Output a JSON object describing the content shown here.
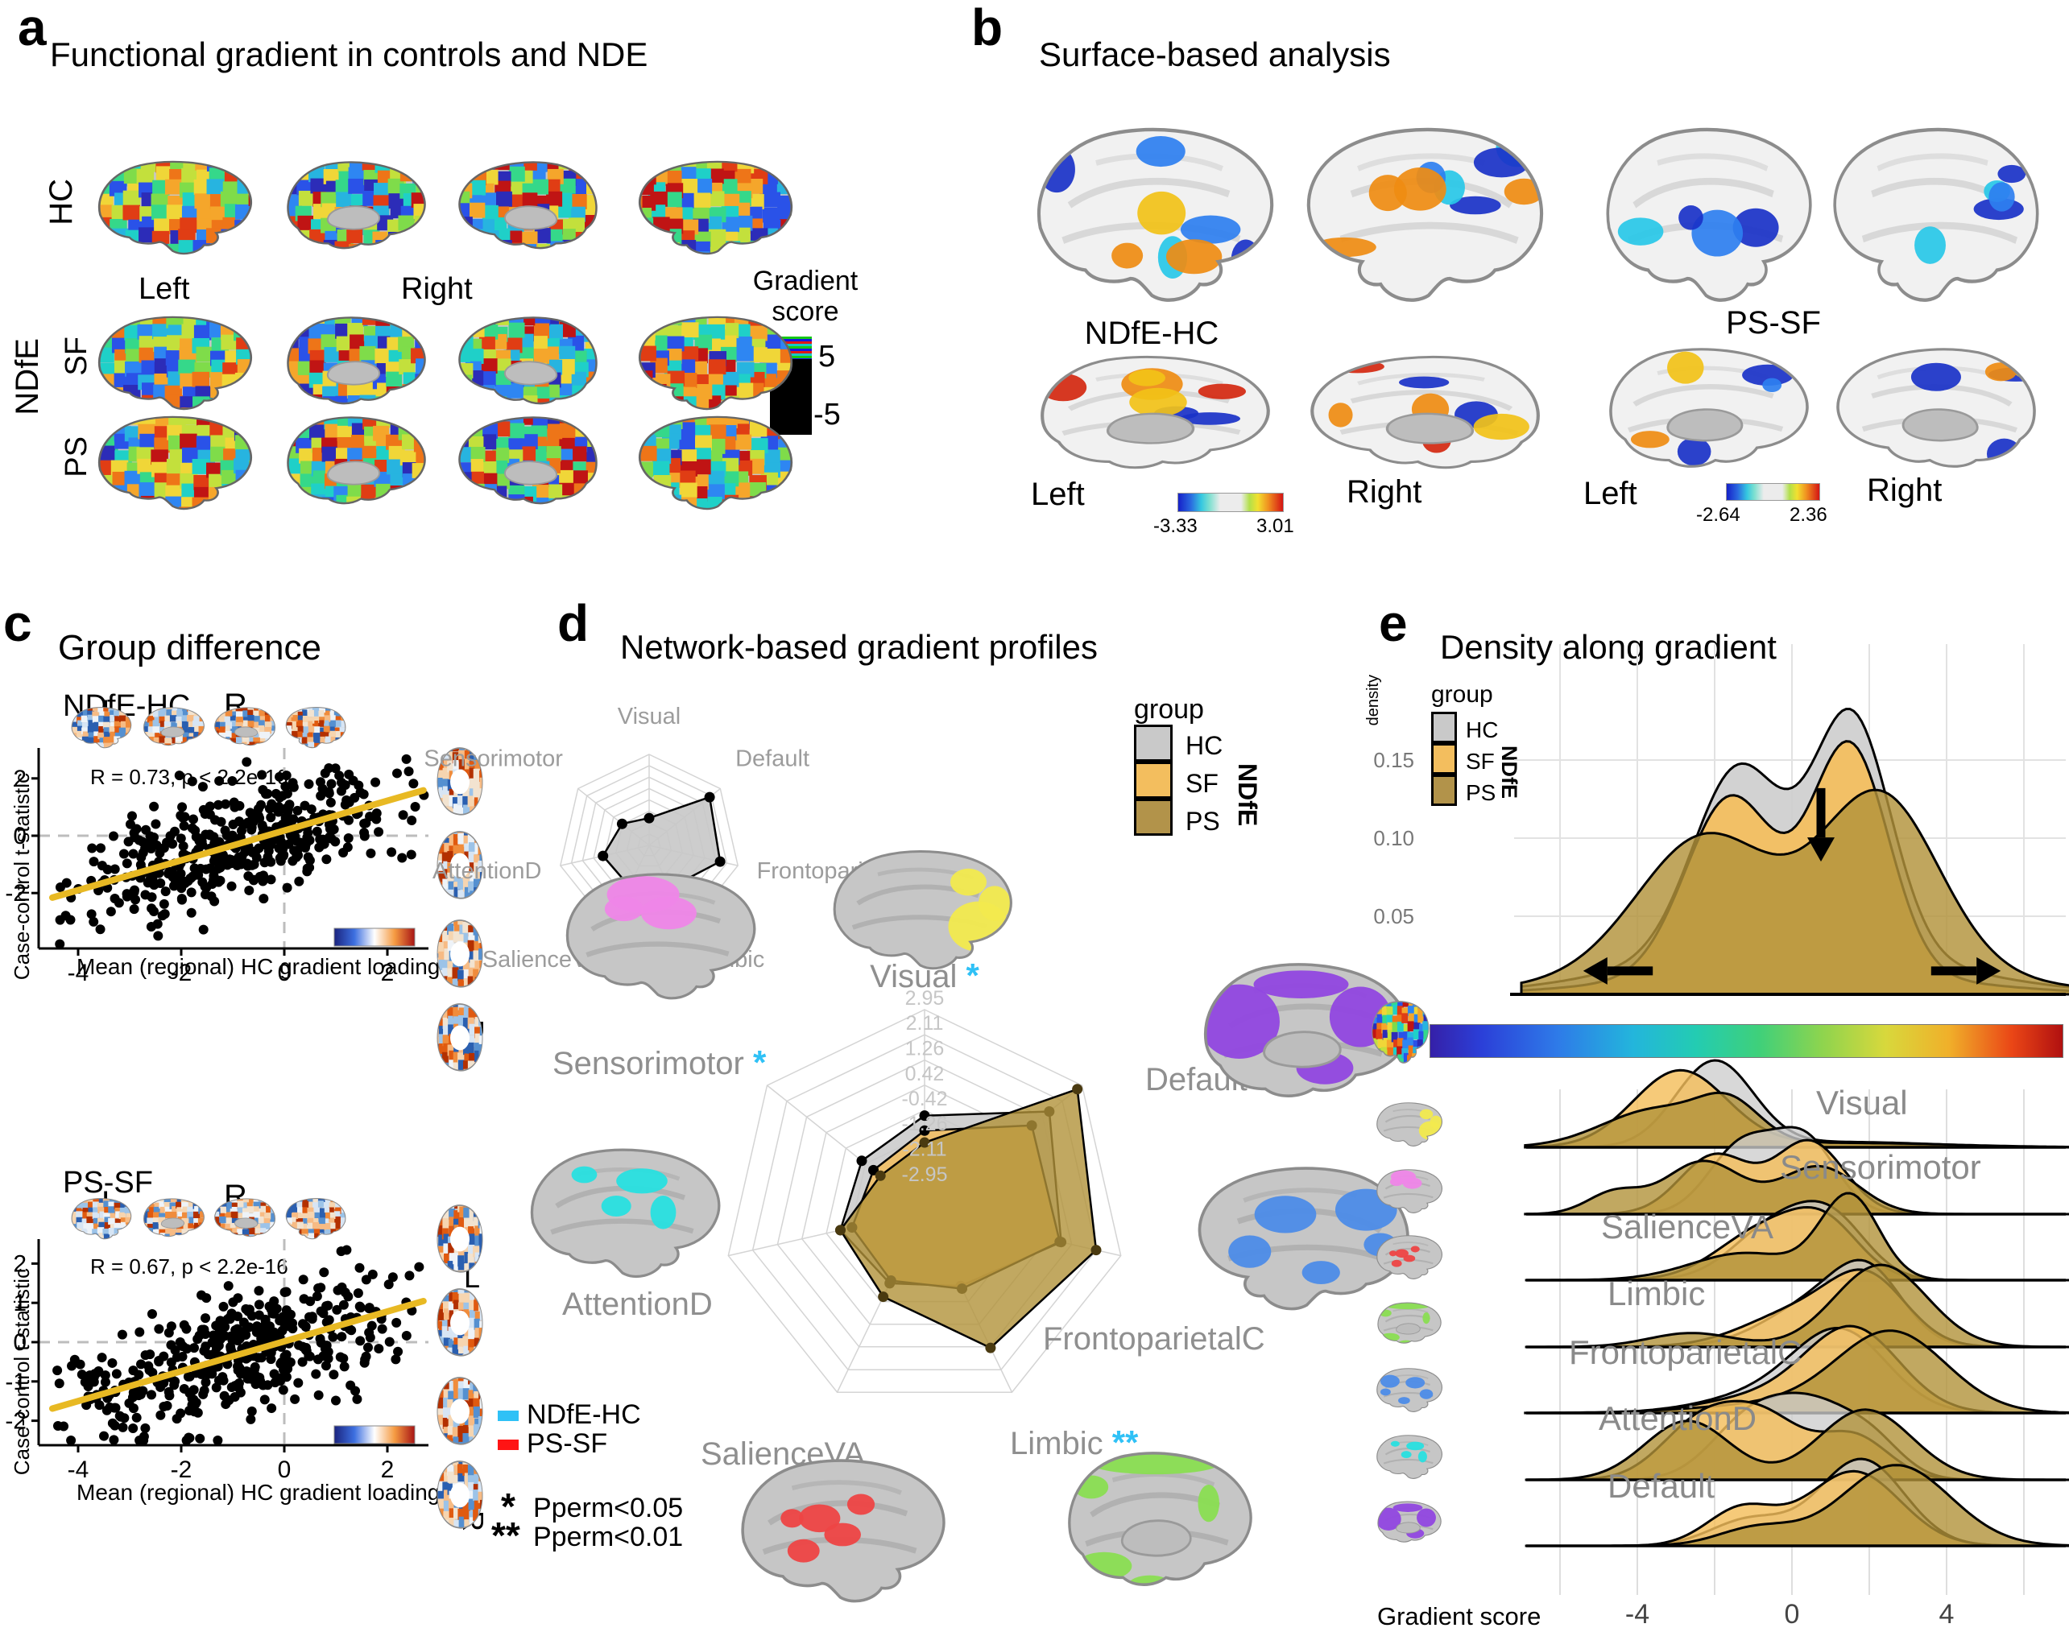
{
  "figure": {
    "colors": {
      "hc": "#c9c9c9",
      "sf": "#f3be5e",
      "ps": "#b2934a",
      "sig_neg": "#2fc1f6",
      "sig_pos": "#ff1414",
      "regression": "#e8b923",
      "net_visual": "#f2ea4e",
      "net_sensorimotor": "#ef86e8",
      "net_salience": "#ee4444",
      "net_limbic": "#8ade52",
      "net_fronto": "#4d8ce8",
      "net_attention": "#28e0e0",
      "net_default": "#9147e0"
    },
    "panel_a": {
      "tag": "a",
      "title": "Functional gradient in controls and NDE",
      "row_hc": "HC",
      "group": "NDfE",
      "row_sf": "SF",
      "row_ps": "PS",
      "left": "Left",
      "right": "Right",
      "cbar": {
        "title1": "Gradient",
        "title2": "score",
        "max": "5",
        "min": "-5"
      }
    },
    "panel_b": {
      "tag": "b",
      "title": "Surface-based analysis",
      "blocks": [
        {
          "label": "NDfE-HC",
          "left": "Left",
          "right": "Right",
          "min": "-3.33",
          "max": "3.01"
        },
        {
          "label": "PS-SF",
          "left": "Left",
          "right": "Right",
          "min": "-2.64",
          "max": "2.36"
        }
      ]
    },
    "panel_c": {
      "tag": "c",
      "title": "Group difference",
      "ylabel": "Case-control t-statistic",
      "xlabel": "Mean (regional) HC gradient loading",
      "plots": [
        {
          "label": "NDfE-HC",
          "stats": "R = 0.73, p < 2.2e-16",
          "top_l": "L",
          "top_r": "R",
          "side_l": "L",
          "side_r": "R"
        },
        {
          "label": "PS-SF",
          "stats": "R = 0.67, p < 2.2e-16",
          "top_l": "L",
          "top_r": "R",
          "side_l": "L",
          "side_r": "R"
        }
      ]
    },
    "panel_d": {
      "tag": "d",
      "title": "Network-based gradient profiles",
      "legend": {
        "title": "group",
        "items": [
          {
            "label": "HC"
          },
          {
            "label": "SF"
          },
          {
            "label": "PS"
          }
        ],
        "brace": "NDfE"
      },
      "contrast_legend": [
        {
          "label": "NDfE-HC"
        },
        {
          "label": "PS-SF"
        }
      ],
      "sig_notes": [
        {
          "star": "*",
          "text": "Pperm<0.05"
        },
        {
          "star": "**",
          "text": "Pperm<0.01"
        }
      ]
    },
    "panel_e": {
      "tag": "e",
      "title": "Density along gradient",
      "ylabel": "density",
      "legend": {
        "title": "group",
        "items": [
          "HC",
          "SF",
          "PS"
        ],
        "brace": "NDfE"
      },
      "xlabel": "Gradient score"
    }
  },
  "chart_data": {
    "scatter_plots": [
      {
        "type": "scatter",
        "name": "NDfE-HC",
        "stats": "R = 0.73, p < 2.2e-16",
        "xlabel": "Mean (regional) HC gradient loading",
        "ylabel": "Case-control t-statistic",
        "xticks": [
          -4,
          -2,
          0,
          2
        ],
        "yticks": [
          -2,
          0,
          2
        ],
        "xlim": [
          -4.75,
          2.8
        ],
        "ylim": [
          -3.9,
          3.06
        ],
        "regression": {
          "slope": 0.52,
          "intercept": 0.18,
          "x_range": [
            -4.5,
            2.7
          ]
        },
        "points": {
          "n": 430,
          "seed": 11,
          "noise": 0.95,
          "x_min": -4.6,
          "x_max": 2.75
        }
      },
      {
        "type": "scatter",
        "name": "PS-SF",
        "stats": "R = 0.67, p < 2.2e-16",
        "xlabel": "Mean (regional) HC gradient loading",
        "ylabel": "Case-control t-statistic",
        "xticks": [
          -4,
          -2,
          0,
          2
        ],
        "yticks": [
          -2,
          -1,
          0,
          1,
          2
        ],
        "xlim": [
          -4.75,
          2.8
        ],
        "ylim": [
          -2.62,
          2.66
        ],
        "regression": {
          "slope": 0.38,
          "intercept": 0.02,
          "x_range": [
            -4.5,
            2.7
          ]
        },
        "points": {
          "n": 430,
          "seed": 29,
          "noise": 0.8,
          "x_min": -4.6,
          "x_max": 2.75
        }
      }
    ],
    "radar_small": {
      "type": "radar",
      "range": [
        0,
        1
      ],
      "rings": [
        0.125,
        0.25,
        0.375,
        0.5,
        0.625,
        0.75,
        0.875,
        1
      ],
      "axes": [
        "Visual",
        "Default",
        "FrontoparietalC",
        "Limbic",
        "SalienceVA",
        "AttentionD",
        "Sensorimotor"
      ],
      "series": [
        {
          "name": "HC",
          "values": [
            0.3,
            0.85,
            0.8,
            0.52,
            0.5,
            0.52,
            0.38
          ]
        }
      ]
    },
    "radar_main": {
      "type": "radar",
      "range": [
        -3.79,
        2.95
      ],
      "rings": [
        2.95,
        2.11,
        1.26,
        0.42,
        -0.42,
        -1.26,
        -2.11,
        -2.95
      ],
      "tick_labels": [
        "2.95",
        "2.11",
        "1.26",
        "0.42",
        "-0.42",
        "-1.26",
        "-2.11",
        "-2.95"
      ],
      "axes": [
        {
          "label": "Visual",
          "sig": "*",
          "sig_color": "sig_neg"
        },
        {
          "label": "Default",
          "sig": "*",
          "sig_color": "sig_pos"
        },
        {
          "label": "FrontoparietalC",
          "sig": "",
          "sig_color": ""
        },
        {
          "label": "Limbic",
          "sig": "**",
          "sig_color": "sig_neg"
        },
        {
          "label": "SalienceVA",
          "sig": "",
          "sig_color": ""
        },
        {
          "label": "AttentionD",
          "sig": "",
          "sig_color": ""
        },
        {
          "label": "Sensorimotor",
          "sig": "*",
          "sig_color": "sig_neg"
        }
      ],
      "series": [
        {
          "name": "HC",
          "color": "hc",
          "values": [
            -0.6,
            1.55,
            0.9,
            -1.0,
            -1.1,
            -0.9,
            -1.1
          ]
        },
        {
          "name": "SF",
          "color": "sf",
          "values": [
            -1.1,
            0.8,
            0.85,
            -0.9,
            -1.2,
            -1.3,
            -1.6
          ]
        },
        {
          "name": "PS",
          "color": "ps",
          "values": [
            -1.5,
            2.75,
            2.1,
            1.3,
            -0.6,
            -0.9,
            -1.9
          ]
        }
      ]
    },
    "density_top": {
      "type": "area",
      "ylabel": "density",
      "ytick_labels": [
        "0.15",
        "0.10",
        "0.05"
      ],
      "yticks": [
        0.15,
        0.1,
        0.05
      ],
      "xlim": [
        -7,
        7.3
      ],
      "grid_x_step": 2,
      "groups": [
        {
          "name": "HC",
          "comps": [
            [
              -1.4,
              1.15,
              0.33
            ],
            [
              1.55,
              1.0,
              0.37
            ],
            [
              0,
              3.6,
              0.3
            ]
          ]
        },
        {
          "name": "SF",
          "comps": [
            [
              -1.6,
              1.15,
              0.32
            ],
            [
              1.5,
              1.0,
              0.36
            ],
            [
              0,
              3.6,
              0.15
            ]
          ]
        },
        {
          "name": "PS",
          "comps": [
            [
              -2.3,
              1.7,
              0.34
            ],
            [
              2.3,
              1.5,
              0.4
            ],
            [
              0,
              4.0,
              0.26
            ]
          ]
        }
      ],
      "arrows": [
        {
          "type": "down",
          "x": 0.75,
          "from": 0.132,
          "to": 0.085
        },
        {
          "type": "left",
          "y": 0.015,
          "from": -3.6,
          "to": -5.4
        },
        {
          "type": "right",
          "y": 0.015,
          "from": 3.6,
          "to": 5.4
        }
      ]
    },
    "ridgelines": {
      "type": "area",
      "xlabel": "Gradient score",
      "xticks": [
        -4,
        0,
        4
      ],
      "xlim": [
        -6.9,
        7.3
      ],
      "rows": [
        {
          "network": "Visual",
          "label_side": "right",
          "color": "net_visual",
          "view": "lat",
          "HC": [
            [
              -2.0,
              1.0,
              0.9
            ],
            [
              1.5,
              2.2,
              0.12
            ]
          ],
          "SF": [
            [
              -2.9,
              1.2,
              0.95
            ],
            [
              0.5,
              2.6,
              0.12
            ]
          ],
          "PS": [
            [
              -3.5,
              1.4,
              0.55
            ],
            [
              -1.6,
              0.8,
              0.3
            ],
            [
              1.5,
              2.6,
              0.12
            ]
          ]
        },
        {
          "network": "Sensorimotor",
          "label_side": "right",
          "color": "net_sensorimotor",
          "view": "lat",
          "HC": [
            [
              -1.3,
              0.85,
              0.55
            ],
            [
              0.35,
              0.8,
              0.55
            ]
          ],
          "SF": [
            [
              -2.0,
              0.9,
              0.5
            ],
            [
              0.45,
              0.9,
              0.62
            ]
          ],
          "PS": [
            [
              -4.6,
              0.7,
              0.14
            ],
            [
              -2.3,
              1.0,
              0.5
            ],
            [
              0.7,
              1.0,
              0.45
            ]
          ]
        },
        {
          "network": "SalienceVA",
          "label_side": "left",
          "color": "net_salience",
          "view": "lat",
          "HC": [
            [
              -0.4,
              1.1,
              0.6
            ],
            [
              1.1,
              0.9,
              0.45
            ]
          ],
          "SF": [
            [
              -0.7,
              1.2,
              0.6
            ],
            [
              0.9,
              0.9,
              0.42
            ]
          ],
          "PS": [
            [
              -1.2,
              1.4,
              0.38
            ],
            [
              1.5,
              0.75,
              0.62
            ]
          ]
        },
        {
          "network": "Limbic",
          "label_side": "left",
          "color": "net_limbic",
          "view": "med",
          "HC": [
            [
              0.6,
              1.3,
              0.5
            ],
            [
              2.0,
              0.9,
              0.5
            ]
          ],
          "SF": [
            [
              0.2,
              1.4,
              0.45
            ],
            [
              2.0,
              1.0,
              0.55
            ]
          ],
          "PS": [
            [
              -2.6,
              1.1,
              0.14
            ],
            [
              2.3,
              1.2,
              0.9
            ]
          ]
        },
        {
          "network": "FrontoparietalC",
          "label_side": "left",
          "color": "net_fronto",
          "view": "lat",
          "HC": [
            [
              1.3,
              1.2,
              0.75
            ],
            [
              -0.6,
              1.6,
              0.25
            ]
          ],
          "SF": [
            [
              1.6,
              1.2,
              0.8
            ],
            [
              -0.6,
              1.6,
              0.22
            ]
          ],
          "PS": [
            [
              2.6,
              1.4,
              0.9
            ],
            [
              0,
              2.2,
              0.18
            ]
          ]
        },
        {
          "network": "AttentionD",
          "label_side": "left",
          "color": "net_attention",
          "view": "lat",
          "HC": [
            [
              -1.1,
              1.0,
              0.45
            ],
            [
              0.6,
              1.0,
              0.5
            ],
            [
              2.1,
              0.8,
              0.2
            ]
          ],
          "SF": [
            [
              -2.4,
              1.0,
              0.42
            ],
            [
              -0.7,
              1.0,
              0.45
            ],
            [
              1.6,
              0.9,
              0.3
            ]
          ],
          "PS": [
            [
              -2.7,
              1.1,
              0.5
            ],
            [
              1.9,
              1.2,
              0.65
            ]
          ]
        },
        {
          "network": "Default",
          "label_side": "left",
          "color": "net_default",
          "view": "med",
          "HC": [
            [
              1.8,
              1.1,
              0.8
            ],
            [
              -1.1,
              1.0,
              0.22
            ]
          ],
          "SF": [
            [
              1.6,
              1.2,
              0.75
            ],
            [
              -1.3,
              0.9,
              0.28
            ]
          ],
          "PS": [
            [
              2.7,
              1.4,
              0.95
            ],
            [
              -0.9,
              1.0,
              0.15
            ]
          ]
        }
      ]
    },
    "colorbars": [
      {
        "panel": "a",
        "title": "Gradient score",
        "max": "5",
        "min": "-5"
      },
      {
        "panel": "b",
        "contrast": "NDfE-HC",
        "min": "-3.33",
        "max": "3.01"
      },
      {
        "panel": "b",
        "contrast": "PS-SF",
        "min": "-2.64",
        "max": "2.36"
      },
      {
        "panel": "e",
        "type": "jet-gradient-score"
      }
    ]
  }
}
